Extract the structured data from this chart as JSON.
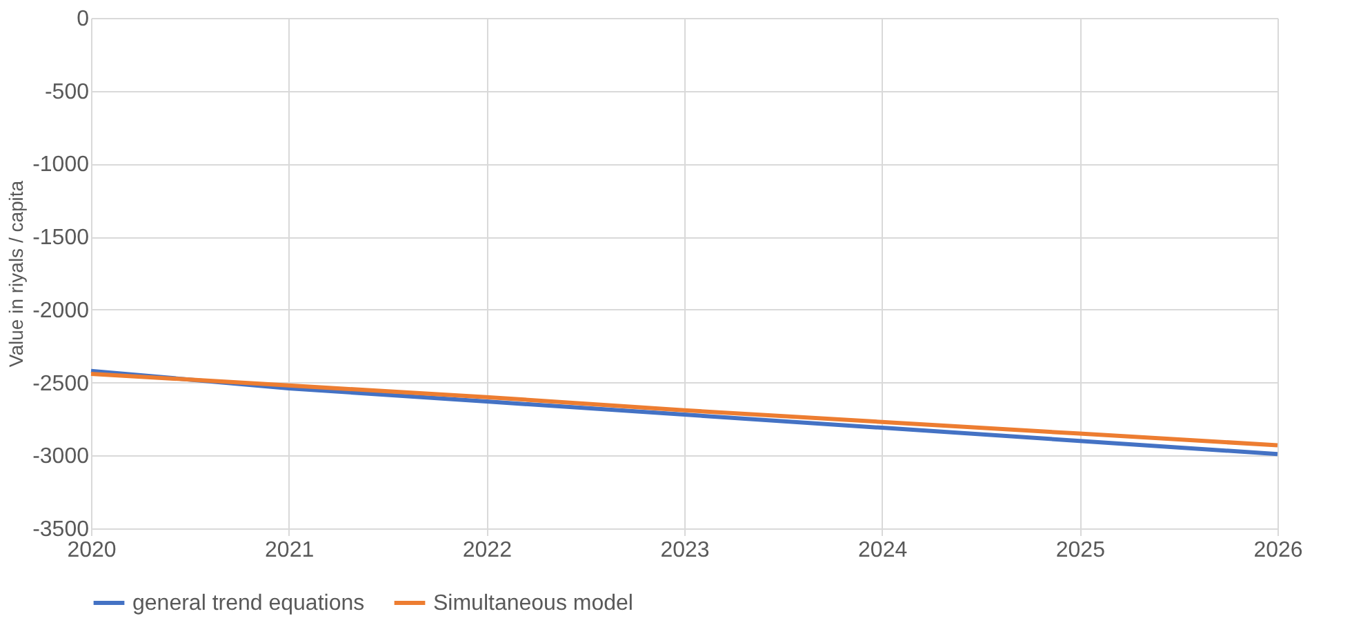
{
  "chart_data": {
    "type": "line",
    "ylabel": "Value in riyals / capita",
    "x": [
      2020,
      2021,
      2022,
      2023,
      2024,
      2025,
      2026
    ],
    "series": [
      {
        "name": "general trend  equations",
        "color": "#4472c4",
        "values": [
          -2420,
          -2540,
          -2630,
          -2720,
          -2810,
          -2900,
          -2990
        ]
      },
      {
        "name": "Simultaneous model",
        "color": "#ed7d31",
        "values": [
          -2440,
          -2520,
          -2600,
          -2690,
          -2770,
          -2850,
          -2930
        ]
      }
    ],
    "xlim": [
      2020,
      2026
    ],
    "xticks": [
      2020,
      2021,
      2022,
      2023,
      2024,
      2025,
      2026
    ],
    "ylim": [
      -3500,
      0
    ],
    "yticks": [
      -3500,
      -3000,
      -2500,
      -2000,
      -1500,
      -1000,
      -500,
      0
    ],
    "grid": true,
    "legend": "bottom",
    "marker": "none",
    "line_style": "solid"
  }
}
